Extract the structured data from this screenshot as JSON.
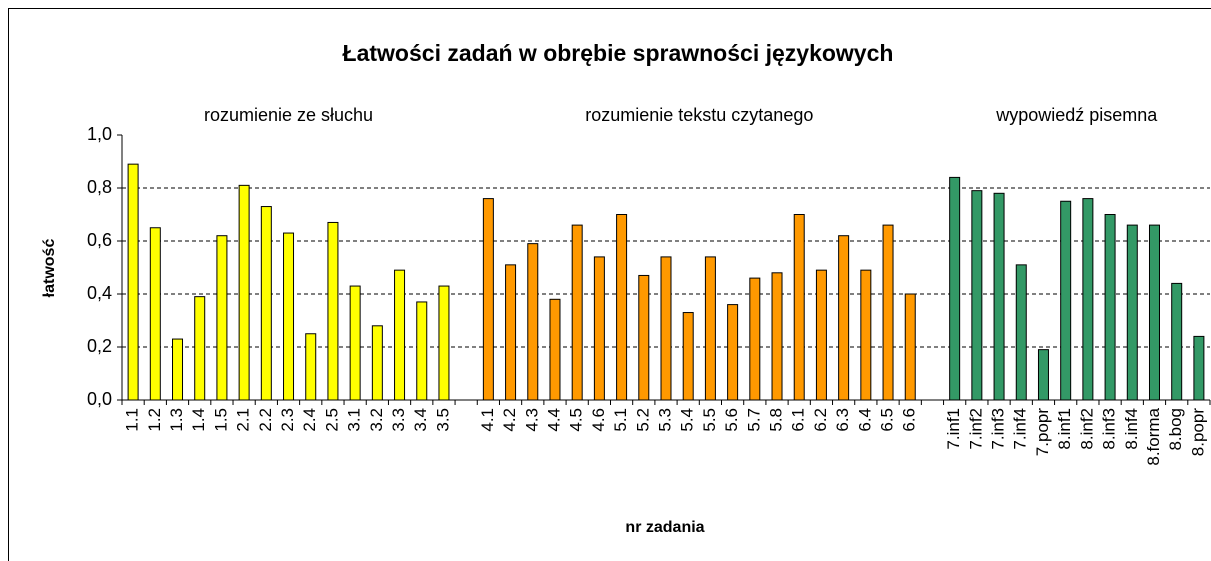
{
  "chart_data": {
    "type": "bar",
    "title": "Łatwości zadań w obrębie sprawności językowych",
    "x_label": "nr zadania",
    "y_label": "łatwość",
    "groups": [
      {
        "label": "rozumienie ze słuchu",
        "color": "#ffff00"
      },
      {
        "label": "rozumienie tekstu czytanego",
        "color": "#ff9900"
      },
      {
        "label": "wypowiedź pisemna",
        "color": "#339966"
      }
    ],
    "categories": [
      "1.1",
      "1.2",
      "1.3",
      "1.4",
      "1.5",
      "2.1",
      "2.2",
      "2.3",
      "2.4",
      "2.5",
      "3.1",
      "3.2",
      "3.3",
      "3.4",
      "3.5",
      null,
      "4.1",
      "4.2",
      "4.3",
      "4.4",
      "4.5",
      "4.6",
      "5.1",
      "5.2",
      "5.3",
      "5.4",
      "5.5",
      "5.6",
      "5.7",
      "5.8",
      "6.1",
      "6.2",
      "6.3",
      "6.4",
      "6.5",
      "6.6",
      null,
      "7.inf1",
      "7.inf2",
      "7.inf3",
      "7.inf4",
      "7.popr",
      "8.inf1",
      "8.inf2",
      "8.inf3",
      "8.inf4",
      "8.forma",
      "8.bog",
      "8.popr"
    ],
    "values": [
      0.89,
      0.65,
      0.23,
      0.39,
      0.62,
      0.81,
      0.73,
      0.63,
      0.25,
      0.67,
      0.43,
      0.28,
      0.49,
      0.37,
      0.43,
      null,
      0.76,
      0.51,
      0.59,
      0.38,
      0.66,
      0.54,
      0.7,
      0.47,
      0.54,
      0.33,
      0.54,
      0.36,
      0.46,
      0.48,
      0.7,
      0.49,
      0.62,
      0.49,
      0.66,
      0.4,
      null,
      0.84,
      0.79,
      0.78,
      0.51,
      0.19,
      0.75,
      0.76,
      0.7,
      0.66,
      0.66,
      0.44,
      0.24
    ],
    "ylim": [
      0,
      1
    ],
    "yticks": [
      {
        "value": 0,
        "label": "0,0"
      },
      {
        "value": 0.2,
        "label": "0,2"
      },
      {
        "value": 0.4,
        "label": "0,4"
      },
      {
        "value": 0.6,
        "label": "0,6"
      },
      {
        "value": 0.8,
        "label": "0,8"
      },
      {
        "value": 1,
        "label": "1,0"
      }
    ],
    "grid": true
  }
}
